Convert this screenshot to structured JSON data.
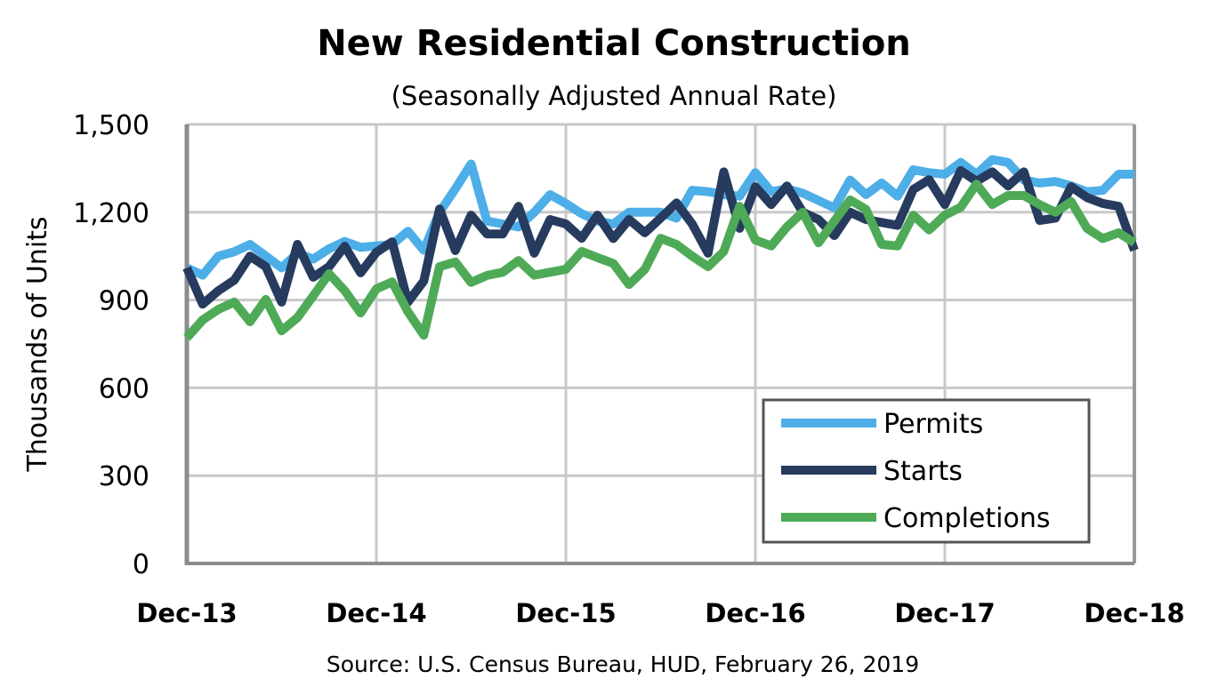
{
  "chart_data": {
    "type": "line",
    "title": "New Residential Construction",
    "subtitle": "(Seasonally Adjusted Annual Rate)",
    "ylabel": "Thousands of Units",
    "xlabel": "",
    "source": "Source:  U.S. Census Bureau, HUD, February 26, 2019",
    "ylim": [
      0,
      1500
    ],
    "yticks": [
      0,
      300,
      600,
      900,
      1200,
      1500
    ],
    "ytick_labels": [
      "0",
      "300",
      "600",
      "900",
      "1,200",
      "1,500"
    ],
    "x_range": [
      "Dec-13",
      "Dec-18"
    ],
    "x_frequency": "monthly",
    "xtick_labels": [
      "Dec-13",
      "Dec-14",
      "Dec-15",
      "Dec-16",
      "Dec-17",
      "Dec-18"
    ],
    "grid": true,
    "legend_position": "bottom-right",
    "series": [
      {
        "name": "Permits",
        "color": "#4DAEE8",
        "values": [
          1010,
          985,
          1050,
          1065,
          1090,
          1050,
          1010,
          1060,
          1040,
          1075,
          1100,
          1080,
          1085,
          1090,
          1135,
          1070,
          1200,
          1280,
          1365,
          1170,
          1160,
          1150,
          1200,
          1260,
          1230,
          1195,
          1170,
          1160,
          1200,
          1200,
          1200,
          1180,
          1275,
          1270,
          1260,
          1255,
          1335,
          1270,
          1280,
          1265,
          1240,
          1215,
          1310,
          1260,
          1300,
          1255,
          1345,
          1335,
          1330,
          1370,
          1330,
          1380,
          1370,
          1310,
          1300,
          1305,
          1290,
          1270,
          1275,
          1330,
          1330
        ]
      },
      {
        "name": "Starts",
        "color": "#263B5E",
        "values": [
          1010,
          886,
          932,
          968,
          1050,
          1014,
          893,
          1090,
          978,
          1014,
          1084,
          993,
          1063,
          1099,
          893,
          965,
          1211,
          1069,
          1190,
          1126,
          1126,
          1220,
          1060,
          1175,
          1160,
          1111,
          1190,
          1110,
          1175,
          1130,
          1180,
          1232,
          1160,
          1060,
          1338,
          1145,
          1287,
          1226,
          1290,
          1200,
          1175,
          1120,
          1200,
          1175,
          1165,
          1155,
          1278,
          1311,
          1226,
          1342,
          1306,
          1338,
          1290,
          1338,
          1172,
          1180,
          1287,
          1250,
          1230,
          1220,
          1070
        ]
      },
      {
        "name": "Completions",
        "color": "#4EAA57",
        "values": [
          771,
          832,
          868,
          893,
          826,
          902,
          795,
          840,
          914,
          990,
          932,
          856,
          938,
          962,
          860,
          780,
          1014,
          1030,
          960,
          984,
          995,
          1035,
          985,
          995,
          1005,
          1066,
          1045,
          1025,
          953,
          1005,
          1111,
          1090,
          1050,
          1014,
          1066,
          1220,
          1105,
          1085,
          1150,
          1200,
          1096,
          1170,
          1242,
          1210,
          1090,
          1085,
          1190,
          1140,
          1190,
          1217,
          1296,
          1226,
          1257,
          1257,
          1226,
          1200,
          1236,
          1145,
          1110,
          1130,
          1096
        ]
      }
    ]
  }
}
